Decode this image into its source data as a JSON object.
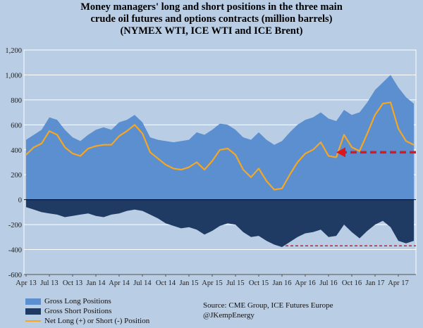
{
  "title_lines": [
    "Money managers' long and short positions in the three main",
    "crude oil futures and options contracts (million barrels)",
    "(NYMEX WTI, ICE WTI and ICE Brent)"
  ],
  "legend": {
    "long_label": "Gross Long Positions",
    "short_label": "Gross Short Positions",
    "net_label": "Net Long (+) or Short (-) Position"
  },
  "source": {
    "line1": "Source:  CME Group, ICE Futures Europe",
    "line2": "@JKempEnergy"
  },
  "colors": {
    "long": "#5b8fd0",
    "short": "#1f3a63",
    "net": "#f5a623",
    "marker": "#e0161b",
    "background": "#b9cde5"
  },
  "chart_data": {
    "type": "area",
    "ylim": [
      -600,
      1200
    ],
    "yticks": [
      1200,
      1000,
      800,
      600,
      400,
      200,
      0,
      -200,
      -400,
      -600
    ],
    "xticks": [
      "Apr 13",
      "Jul 13",
      "Oct 13",
      "Jan 14",
      "Apr 14",
      "Jul 14",
      "Oct 14",
      "Jan 15",
      "Apr 15",
      "Jul 15",
      "Oct 15",
      "Jan 16",
      "Apr 16",
      "Jul 16",
      "Oct 16",
      "Jan 17",
      "Apr 17"
    ],
    "x": [
      "2013-04",
      "2013-05",
      "2013-06",
      "2013-07",
      "2013-08",
      "2013-09",
      "2013-10",
      "2013-11",
      "2013-12",
      "2014-01",
      "2014-02",
      "2014-03",
      "2014-04",
      "2014-05",
      "2014-06",
      "2014-07",
      "2014-08",
      "2014-09",
      "2014-10",
      "2014-11",
      "2014-12",
      "2015-01",
      "2015-02",
      "2015-03",
      "2015-04",
      "2015-05",
      "2015-06",
      "2015-07",
      "2015-08",
      "2015-09",
      "2015-10",
      "2015-11",
      "2015-12",
      "2016-01",
      "2016-02",
      "2016-03",
      "2016-04",
      "2016-05",
      "2016-06",
      "2016-07",
      "2016-08",
      "2016-09",
      "2016-10",
      "2016-11",
      "2016-12",
      "2017-01",
      "2017-02",
      "2017-03",
      "2017-04",
      "2017-05",
      "2017-06"
    ],
    "series": [
      {
        "name": "Gross Long Positions",
        "values": [
          480,
          520,
          560,
          660,
          640,
          560,
          500,
          470,
          520,
          560,
          580,
          560,
          620,
          640,
          680,
          620,
          500,
          480,
          470,
          460,
          470,
          480,
          540,
          520,
          560,
          610,
          600,
          560,
          500,
          480,
          540,
          480,
          440,
          470,
          540,
          600,
          640,
          660,
          700,
          650,
          630,
          720,
          680,
          700,
          780,
          880,
          940,
          1000,
          900,
          820,
          770
        ]
      },
      {
        "name": "Gross Short Positions",
        "values": [
          -60,
          -80,
          -100,
          -110,
          -120,
          -140,
          -130,
          -120,
          -110,
          -130,
          -140,
          -120,
          -110,
          -90,
          -80,
          -90,
          -120,
          -150,
          -190,
          -210,
          -230,
          -220,
          -240,
          -280,
          -250,
          -210,
          -190,
          -200,
          -260,
          -300,
          -290,
          -330,
          -360,
          -380,
          -340,
          -300,
          -270,
          -260,
          -240,
          -300,
          -290,
          -200,
          -260,
          -310,
          -250,
          -200,
          -170,
          -220,
          -330,
          -350,
          -330
        ]
      },
      {
        "name": "Net Long (+) or Short (-) Position",
        "values": [
          360,
          420,
          450,
          550,
          520,
          420,
          370,
          350,
          410,
          430,
          440,
          440,
          510,
          550,
          600,
          530,
          380,
          330,
          280,
          250,
          240,
          260,
          300,
          240,
          310,
          400,
          410,
          360,
          240,
          180,
          250,
          150,
          80,
          90,
          200,
          300,
          370,
          400,
          460,
          350,
          340,
          520,
          420,
          390,
          530,
          680,
          770,
          780,
          570,
          470,
          440
        ]
      }
    ]
  }
}
